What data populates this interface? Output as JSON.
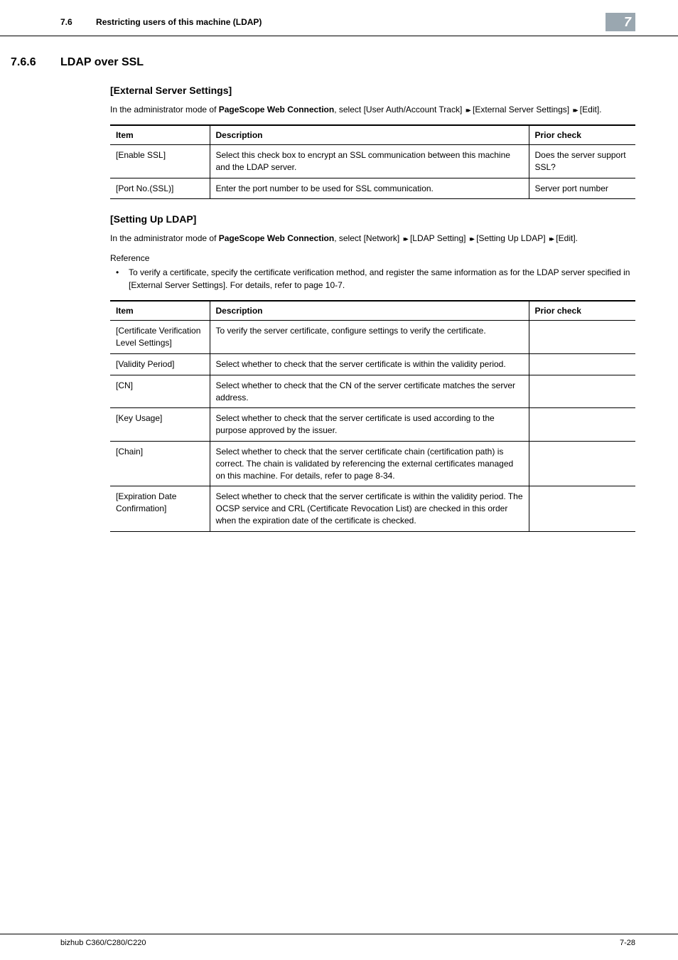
{
  "header": {
    "section_number": "7.6",
    "section_title": "Restricting users of this machine (LDAP)",
    "chapter_badge": "7"
  },
  "main": {
    "h2_number": "7.6.6",
    "h2_title": "LDAP over SSL",
    "section1": {
      "heading": "[External Server Settings]",
      "intro_pre": "In the administrator mode of ",
      "intro_bold": "PageScope Web Connection",
      "intro_post1": ", select [User Auth/Account Track] ",
      "intro_post2": " [External Server Settings] ",
      "intro_post3": " [Edit].",
      "table": {
        "headers": {
          "item": "Item",
          "desc": "Description",
          "prior": "Prior check"
        },
        "rows": [
          {
            "item": "[Enable SSL]",
            "desc": "Select this check box to encrypt an SSL communication between this machine and the LDAP server.",
            "prior": "Does the server support SSL?"
          },
          {
            "item": "[Port No.(SSL)]",
            "desc": "Enter the port number to be used for SSL communication.",
            "prior": "Server port number"
          }
        ]
      }
    },
    "section2": {
      "heading": "[Setting Up LDAP]",
      "intro_pre": "In the administrator mode of ",
      "intro_bold": "PageScope Web Connection",
      "intro_post1": ", select [Network] ",
      "intro_post2": " [LDAP Setting] ",
      "intro_post3": " [Setting Up LDAP] ",
      "intro_post4": " [Edit].",
      "reference_label": "Reference",
      "bullets": [
        "To verify a certificate, specify the certificate verification method, and register the same information as for the LDAP server specified in [External Server Settings]. For details, refer to page 10-7."
      ],
      "table": {
        "headers": {
          "item": "Item",
          "desc": "Description",
          "prior": "Prior check"
        },
        "rows": [
          {
            "item": "[Certificate Verification Level Settings]",
            "desc": "To verify the server certificate, configure settings to verify the certificate.",
            "prior": ""
          },
          {
            "item": "[Validity Period]",
            "desc": "Select whether to check that the server certificate is within the validity period.",
            "prior": ""
          },
          {
            "item": "[CN]",
            "desc": "Select whether to check that the CN of the server certificate matches the server address.",
            "prior": ""
          },
          {
            "item": "[Key Usage]",
            "desc": "Select whether to check that the server certificate is used according to the purpose approved by the issuer.",
            "prior": ""
          },
          {
            "item": "[Chain]",
            "desc": "Select whether to check that the server certificate chain (certification path) is correct.\nThe chain is validated by referencing the external certificates managed on this machine. For details, refer to page 8-34.",
            "prior": ""
          },
          {
            "item": "[Expiration Date Confirmation]",
            "desc": "Select whether to check that the server certificate is within the validity period.\nThe OCSP service and CRL (Certificate Revocation List) are checked in this order when the expiration date of the certificate is checked.",
            "prior": ""
          }
        ]
      }
    }
  },
  "footer": {
    "left": "bizhub C360/C280/C220",
    "right": "7-28"
  },
  "glyphs": {
    "arrow": "▸▸"
  }
}
